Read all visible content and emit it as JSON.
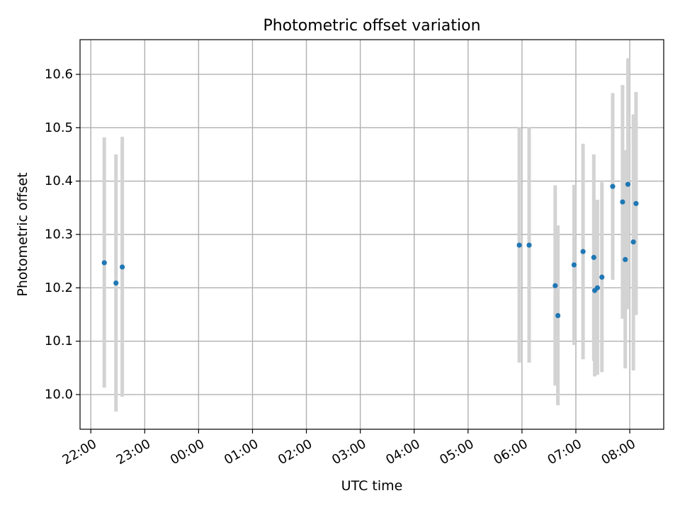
{
  "chart_data": {
    "type": "scatter",
    "title": "Photometric offset variation",
    "xlabel": "UTC time",
    "ylabel": "Photometric offset",
    "x_tick_labels": [
      "22:00",
      "23:00",
      "00:00",
      "01:00",
      "02:00",
      "03:00",
      "04:00",
      "05:00",
      "06:00",
      "07:00",
      "08:00"
    ],
    "x_tick_hours": [
      22,
      23,
      24,
      25,
      26,
      27,
      28,
      29,
      30,
      31,
      32
    ],
    "x_range_hours": [
      21.8,
      32.63
    ],
    "y_tick_labels": [
      "10.0",
      "10.1",
      "10.2",
      "10.3",
      "10.4",
      "10.5",
      "10.6"
    ],
    "y_ticks": [
      10.0,
      10.1,
      10.2,
      10.3,
      10.4,
      10.5,
      10.6
    ],
    "ylim": [
      9.935,
      10.665
    ],
    "grid": true,
    "colors": {
      "marker": "#1f77b4",
      "errorbar": "#d3d3d3",
      "grid": "#b0b0b0"
    },
    "points": [
      {
        "time": "22:15",
        "y": 10.247,
        "y_low": 10.013,
        "y_high": 10.482
      },
      {
        "time": "22:28",
        "y": 10.209,
        "y_low": 9.968,
        "y_high": 10.45
      },
      {
        "time": "22:35",
        "y": 10.239,
        "y_low": 9.996,
        "y_high": 10.483
      },
      {
        "time": "05:57",
        "y": 10.28,
        "y_low": 10.06,
        "y_high": 10.5
      },
      {
        "time": "06:08",
        "y": 10.28,
        "y_low": 10.06,
        "y_high": 10.5
      },
      {
        "time": "06:37",
        "y": 10.204,
        "y_low": 10.017,
        "y_high": 10.392
      },
      {
        "time": "06:40",
        "y": 10.148,
        "y_low": 9.98,
        "y_high": 10.317
      },
      {
        "time": "06:58",
        "y": 10.243,
        "y_low": 10.093,
        "y_high": 10.393
      },
      {
        "time": "07:08",
        "y": 10.268,
        "y_low": 10.066,
        "y_high": 10.47
      },
      {
        "time": "07:20",
        "y": 10.257,
        "y_low": 10.063,
        "y_high": 10.45
      },
      {
        "time": "07:21",
        "y": 10.195,
        "y_low": 10.034,
        "y_high": 10.357
      },
      {
        "time": "07:24",
        "y": 10.2,
        "y_low": 10.037,
        "y_high": 10.365
      },
      {
        "time": "07:29",
        "y": 10.22,
        "y_low": 10.042,
        "y_high": 10.398
      },
      {
        "time": "07:41",
        "y": 10.39,
        "y_low": 10.215,
        "y_high": 10.565
      },
      {
        "time": "07:52",
        "y": 10.361,
        "y_low": 10.142,
        "y_high": 10.58
      },
      {
        "time": "07:55",
        "y": 10.253,
        "y_low": 10.049,
        "y_high": 10.458
      },
      {
        "time": "07:58",
        "y": 10.394,
        "y_low": 10.16,
        "y_high": 10.63
      },
      {
        "time": "08:04",
        "y": 10.286,
        "y_low": 10.045,
        "y_high": 10.525
      },
      {
        "time": "08:07",
        "y": 10.358,
        "y_low": 10.149,
        "y_high": 10.567
      }
    ]
  }
}
